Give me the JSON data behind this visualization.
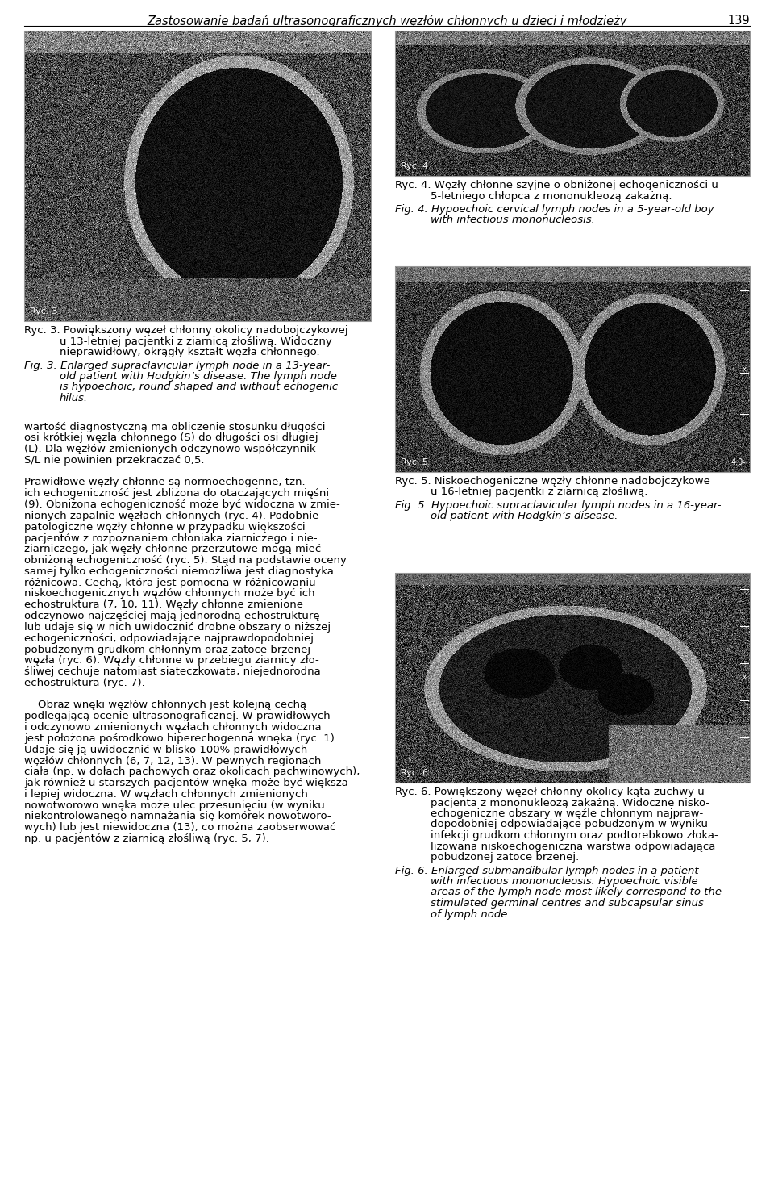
{
  "page_title": "Zastosowanie badań ultrasonograficznych węzłów chłonnych u dzieci i młodzieży",
  "page_number": "139",
  "background_color": "#ffffff",
  "fig3_label": "Ryc. 3",
  "fig4_label": "Ryc. 4",
  "fig5_label": "Ryc. 5",
  "fig6_label": "Ryc. 6",
  "fig3_caption_pl_1": "Ryc. 3. Powiększony węzeł chłonny okolicy nadobojczykowej",
  "fig3_caption_pl_2": "u 13-letniej pacjentki z ziarnicą złośliwą. Widoczny",
  "fig3_caption_pl_3": "nieprawidłowy, okrągły kształt węzła chłonnego.",
  "fig3_caption_en_1": "Fig. 3. Enlarged supraclavicular lymph node in a 13-year-",
  "fig3_caption_en_2": "old patient with Hodgkin’s disease. The lymph node",
  "fig3_caption_en_3": "is hypoechoic, round shaped and without echogenic",
  "fig3_caption_en_4": "hilus.",
  "fig4_caption_pl_1": "Ryc. 4. Węzły chłonne szyjne o obniżonej echogeniczności u",
  "fig4_caption_pl_2": "5-letniego chłopca z mononukleozą zakażną.",
  "fig4_caption_en_1": "Fig. 4. Hypoechoic cervical lymph nodes in a 5-year-old boy",
  "fig4_caption_en_2": "with infectious mononucleosis.",
  "fig5_caption_pl_1": "Ryc. 5. Niskoechogeniczne węzły chłonne nadobojczykowe",
  "fig5_caption_pl_2": "u 16-letniej pacjentki z ziarnicą złośliwą.",
  "fig5_caption_en_1": "Fig. 5. Hypoechoic supraclavicular lymph nodes in a 16-year-",
  "fig5_caption_en_2": "old patient with Hodgkin’s disease.",
  "fig6_caption_pl_1": "Ryc. 6. Powiększony węzeł chłonny okolicy kąta żuchwy u",
  "fig6_caption_pl_2": "pacjenta z mononukleozą zakażną. Widoczne nisko-",
  "fig6_caption_pl_3": "echogeniczne obszary w węźle chłonnym najpraw-",
  "fig6_caption_pl_4": "dopodobniej odpowiadające pobudzonym w wyniku",
  "fig6_caption_pl_5": "infekcji grudkom chłonnym oraz podtorebkowo złoka-",
  "fig6_caption_pl_6": "lizowana niskoechogeniczna warstwa odpowiadająca",
  "fig6_caption_pl_7": "pobudzonej zatoce brzenej.",
  "fig6_caption_en_1": "Fig. 6. Enlarged submandibular lymph nodes in a patient",
  "fig6_caption_en_2": "with infectious mononucleosis. Hypoechoic visible",
  "fig6_caption_en_3": "areas of the lymph node most likely correspond to the",
  "fig6_caption_en_4": "stimulated germinal centres and subcapsular sinus",
  "fig6_caption_en_5": "of lymph node.",
  "body_lines": [
    "wartość diagnostyczną ma obliczenie stosunku długości",
    "osi krótkiej węzła chłonnego (S) do długości osi długiej",
    "(L). Dla węzłów zmienionych odczynowo współczynnik",
    "S/L nie powinien przekraczać 0,5.",
    "",
    "Prawidłowe węzły chłonne są normoechogenne, tzn.",
    "ich echogeniczność jest zbliżona do otaczających mięśni",
    "(9). Obniżona echogeniczność może być widoczna w zmie-",
    "nionych zapalnie węzłach chłonnych (ryc. 4). Podobnie",
    "patologiczne węzły chłonne w przypadku większości",
    "pacjentów z rozpoznaniem chłoniaka ziarniczego i nie-",
    "ziarniczego, jak węzły chłonne przerzutowe mogą mieć",
    "obniżoną echogeniczność (ryc. 5). Stąd na podstawie oceny",
    "samej tylko echogeniczności niemożliwa jest diagnostyka",
    "różnicowa. Cechą, która jest pomocna w różnicowaniu",
    "niskoechogenicznych węzłów chłonnych może być ich",
    "echostruktura (7, 10, 11). Węzły chłonne zmienione",
    "odczynowo najczęściej mają jednorodną echostrukturę",
    "lub udaje się w nich uwidocznić drobne obszary o niższej",
    "echogeniczności, odpowiadające najprawdopodobniej",
    "pobudzonym grudkom chłonnym oraz zatoce brzenej",
    "węzła (ryc. 6). Węzły chłonne w przebiegu ziarnicy zło-",
    "śliwej cechuje natomiast siateczkowata, niejednorodna",
    "echostruktura (ryc. 7).",
    "",
    "    Obraz wnęki węzłów chłonnych jest kolejną cechą",
    "podlegającą ocenie ultrasonograficznej. W prawidłowych",
    "i odczynowo zmienionych węzłach chłonnych widoczna",
    "jest położona pośrodkowo hiperechogenna wnęka (ryc. 1).",
    "Udaje się ją uwidocznić w blisko 100% prawidłowych",
    "węzłów chłonnych (6, 7, 12, 13). W pewnych regionach",
    "ciała (np. w dołach pachowych oraz okolicach pachwinowych),",
    "jak również u starszych pacjentów wnęka może być większa",
    "i lepiej widoczna. W węzłach chłonnych zmienionych",
    "nowotworowo wnęka może ulec przesunięciu (w wyniku",
    "niekontrolowanego namnażania się komórek nowotworo-",
    "wych) lub jest niewidoczna (13), co można zaobserwować",
    "np. u pacjentów z ziarnicą złośliwą (ryc. 5, 7)."
  ]
}
